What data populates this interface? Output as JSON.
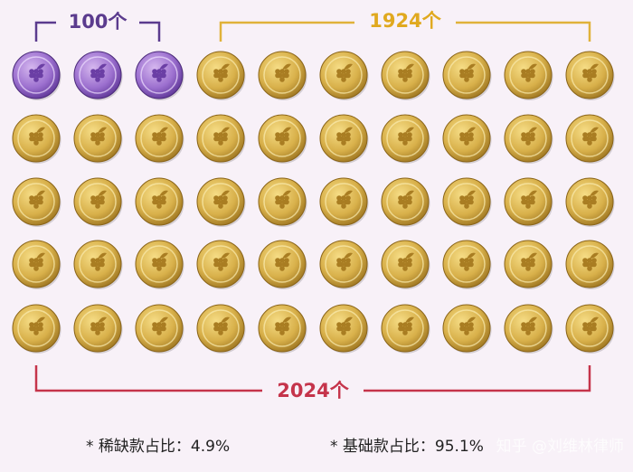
{
  "labels": {
    "rare_count": "100个",
    "basic_count": "1924个",
    "total_count": "2024个"
  },
  "footnotes": [
    "* 稀缺款占比：4.9%",
    "* 基础款占比：95.1%"
  ],
  "watermark": "知乎 @刘维林律师"
}
